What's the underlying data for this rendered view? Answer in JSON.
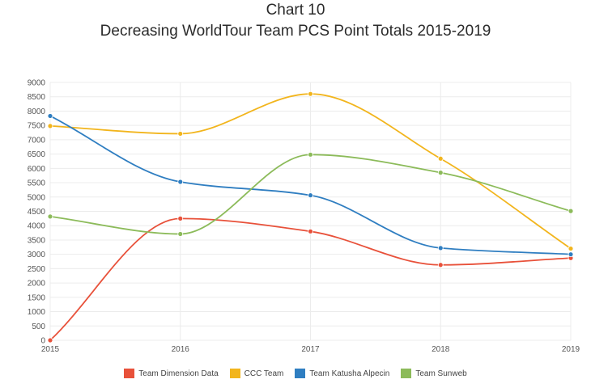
{
  "chart_data": {
    "type": "line",
    "title": "Chart 10",
    "subtitle": "Decreasing WorldTour Team PCS Point Totals 2015-2019",
    "x": [
      "2015",
      "2016",
      "2017",
      "2018",
      "2019"
    ],
    "ylim": [
      0,
      9000
    ],
    "yticks": [
      "0",
      "500",
      "1000",
      "1500",
      "2000",
      "2500",
      "3000",
      "3500",
      "4000",
      "4500",
      "5000",
      "5500",
      "6000",
      "6500",
      "7000",
      "7500",
      "8000",
      "8500",
      "9000"
    ],
    "grid": true,
    "legend_position": "bottom",
    "series": [
      {
        "name": "Team Dimension Data",
        "color": "#e8513a",
        "values": [
          0,
          4250,
          3800,
          2630,
          2870
        ]
      },
      {
        "name": "CCC Team",
        "color": "#f2b51d",
        "values": [
          7480,
          7210,
          8600,
          6340,
          3200
        ]
      },
      {
        "name": "Team Katusha Alpecin",
        "color": "#2f7ec1",
        "values": [
          7830,
          5530,
          5060,
          3220,
          3000
        ]
      },
      {
        "name": "Team Sunweb",
        "color": "#8cbb5a",
        "values": [
          4320,
          3710,
          6480,
          5850,
          4510
        ]
      }
    ]
  }
}
